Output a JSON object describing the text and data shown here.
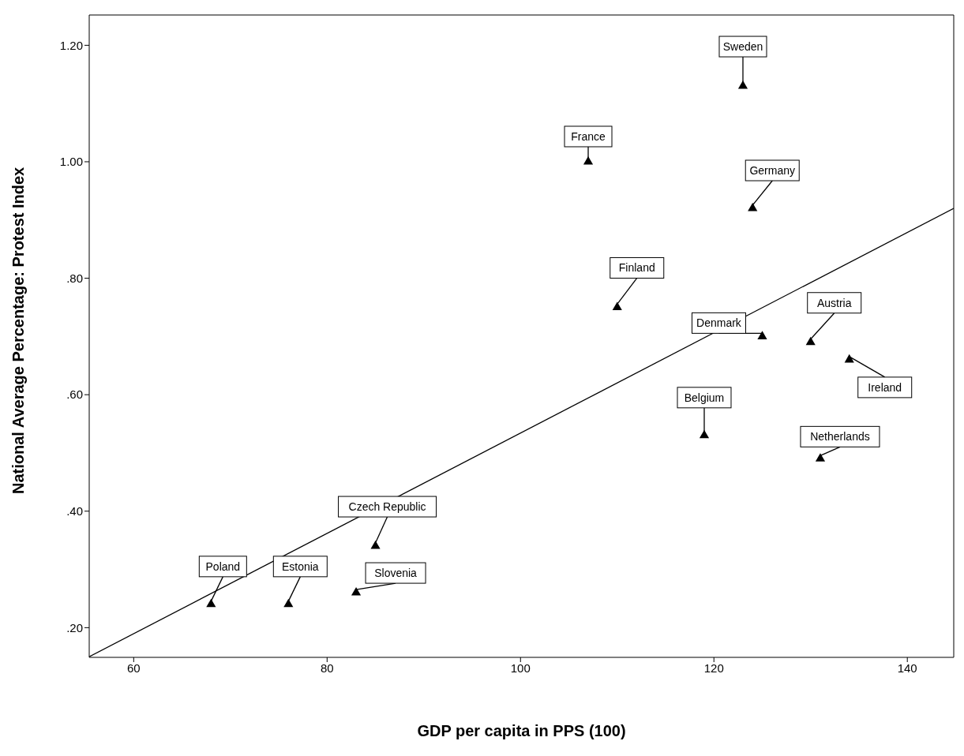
{
  "chart_data": {
    "type": "scatter",
    "xlabel": "GDP per capita in PPS (100)",
    "ylabel": "National Average Percentage: Protest Index",
    "xlim": [
      55.4,
      144.8
    ],
    "xticks": [
      60,
      80,
      100,
      120,
      140
    ],
    "ylim": [
      0.149,
      1.252
    ],
    "yticks": [
      {
        "value": 0.2,
        "label": ".20"
      },
      {
        "value": 0.4,
        "label": ".40"
      },
      {
        "value": 0.6,
        "label": ".60"
      },
      {
        "value": 0.8,
        "label": ".80"
      },
      {
        "value": 1.0,
        "label": "1.00"
      },
      {
        "value": 1.2,
        "label": "1.20"
      }
    ],
    "grid": false,
    "legend": false,
    "series": [
      {
        "marker": "triangle",
        "color": "#000000",
        "x": [
          123,
          107,
          124,
          110,
          125,
          130,
          134,
          119,
          131,
          85,
          68,
          76,
          83
        ],
        "values": [
          1.13,
          1.0,
          0.92,
          0.75,
          0.7,
          0.69,
          0.66,
          0.53,
          0.49,
          0.34,
          0.24,
          0.24,
          0.26
        ]
      },
      {
        "type": "line",
        "marker": "none",
        "color": "#000000",
        "x": [
          55.4,
          144.8
        ],
        "values": [
          0.15,
          0.92
        ]
      }
    ],
    "annotations": [
      {
        "text": "Sweden",
        "x": 123,
        "y": 1.13
      },
      {
        "text": "France",
        "x": 107,
        "y": 1.0
      },
      {
        "text": "Germany",
        "x": 124,
        "y": 0.92
      },
      {
        "text": "Finland",
        "x": 110,
        "y": 0.75
      },
      {
        "text": "Denmark",
        "x": 125,
        "y": 0.7
      },
      {
        "text": "Austria",
        "x": 130,
        "y": 0.69
      },
      {
        "text": "Ireland",
        "x": 134,
        "y": 0.66
      },
      {
        "text": "Belgium",
        "x": 119,
        "y": 0.53
      },
      {
        "text": "Netherlands",
        "x": 131,
        "y": 0.49
      },
      {
        "text": "Czech Republic",
        "x": 85,
        "y": 0.34
      },
      {
        "text": "Poland",
        "x": 68,
        "y": 0.24
      },
      {
        "text": "Estonia",
        "x": 76,
        "y": 0.24
      },
      {
        "text": "Slovenia",
        "x": 83,
        "y": 0.26
      }
    ]
  }
}
